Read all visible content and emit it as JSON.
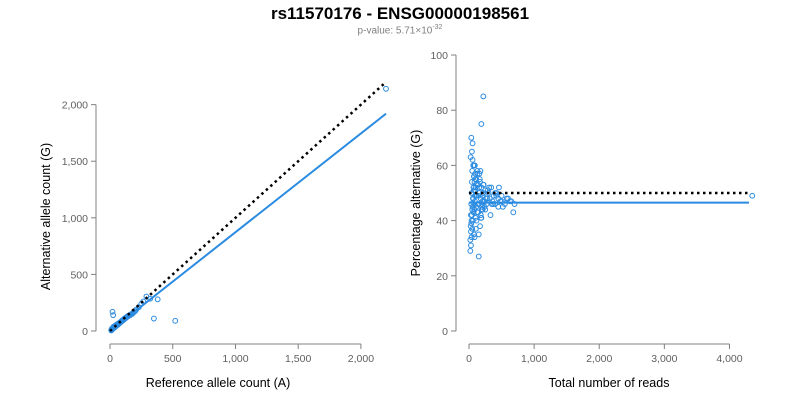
{
  "header": {
    "title": "rs11570176 - ENSG00000198561",
    "pvalue_prefix": "p-value: 5.71×10",
    "pvalue_exponent": "-32"
  },
  "colors": {
    "points": "#2b8be0",
    "fit_line": "#2b8be0",
    "expected_line": "#000000",
    "axis": "#808080"
  },
  "chart_data": [
    {
      "type": "scatter",
      "title": "",
      "xlabel": "Reference allele count (A)",
      "ylabel": "Alternative allele count (G)",
      "xlim": [
        0,
        2200
      ],
      "ylim": [
        0,
        2200
      ],
      "xticks": [
        0,
        500,
        1000,
        1500,
        2000
      ],
      "xtick_labels": [
        "0",
        "500",
        "1,000",
        "1,500",
        "2,000"
      ],
      "yticks": [
        0,
        500,
        1000,
        1500,
        2000
      ],
      "ytick_labels": [
        "0",
        "500",
        "1,000",
        "1,500",
        "2,000"
      ],
      "fit_line": {
        "x": [
          0,
          2200
        ],
        "y": [
          0,
          1920
        ]
      },
      "expected_line": {
        "x": [
          0,
          2200
        ],
        "y": [
          0,
          2200
        ]
      },
      "points": {
        "x": [
          10,
          15,
          20,
          25,
          30,
          12,
          18,
          22,
          28,
          35,
          40,
          45,
          50,
          55,
          60,
          65,
          70,
          80,
          90,
          100,
          110,
          120,
          130,
          140,
          150,
          160,
          175,
          190,
          210,
          230,
          250,
          265,
          290,
          320,
          350,
          380,
          520,
          2200,
          20,
          25,
          30,
          38,
          42,
          48,
          52,
          58,
          62,
          68,
          72,
          78,
          85,
          95,
          105,
          115,
          128,
          135,
          145,
          155,
          170,
          185,
          200,
          12,
          16,
          26,
          32,
          44,
          56,
          66,
          76,
          88,
          98,
          22,
          36,
          46,
          64,
          82
        ],
        "y": [
          5,
          10,
          18,
          25,
          30,
          8,
          15,
          20,
          28,
          30,
          38,
          42,
          45,
          52,
          58,
          60,
          65,
          72,
          85,
          92,
          100,
          110,
          118,
          130,
          135,
          140,
          150,
          170,
          190,
          210,
          240,
          260,
          305,
          285,
          110,
          280,
          90,
          2140,
          170,
          140,
          40,
          35,
          45,
          50,
          55,
          60,
          55,
          65,
          70,
          75,
          80,
          90,
          95,
          110,
          120,
          125,
          130,
          140,
          150,
          160,
          175,
          15,
          22,
          30,
          35,
          40,
          50,
          60,
          70,
          80,
          95,
          25,
          40,
          50,
          60,
          75
        ]
      }
    },
    {
      "type": "scatter",
      "title": "",
      "xlabel": "Total number of reads",
      "ylabel": "Percentage alternative (G)",
      "xlim": [
        0,
        4300
      ],
      "ylim": [
        0,
        100
      ],
      "xticks": [
        0,
        1000,
        2000,
        3000,
        4000
      ],
      "xtick_labels": [
        "0",
        "1,000",
        "2,000",
        "3,000",
        "4,000"
      ],
      "yticks": [
        0,
        20,
        40,
        60,
        80,
        100
      ],
      "ytick_labels": [
        "0",
        "20",
        "40",
        "60",
        "80",
        "100"
      ],
      "fit_line": {
        "x": [
          0,
          4300
        ],
        "y": [
          46.5,
          46.5
        ]
      },
      "expected_line": {
        "x": [
          0,
          4300
        ],
        "y": [
          50,
          50
        ]
      },
      "points": {
        "x": [
          20,
          25,
          30,
          35,
          40,
          45,
          50,
          55,
          60,
          65,
          70,
          75,
          80,
          85,
          90,
          95,
          100,
          110,
          120,
          130,
          140,
          150,
          160,
          170,
          180,
          190,
          200,
          210,
          220,
          230,
          250,
          270,
          300,
          320,
          340,
          360,
          380,
          400,
          420,
          450,
          480,
          500,
          550,
          600,
          650,
          700,
          4350,
          30,
          40,
          50,
          60,
          70,
          80,
          90,
          100,
          110,
          120,
          140,
          160,
          180,
          200,
          220,
          250,
          280,
          310,
          350,
          400,
          450,
          500,
          20,
          30,
          40,
          50,
          60,
          70,
          80,
          90,
          100,
          110,
          130,
          150,
          170,
          190,
          210,
          240,
          35,
          45,
          55,
          65,
          75,
          85,
          95,
          105,
          115,
          125,
          135,
          145,
          155,
          165,
          175,
          185,
          195,
          205,
          215,
          225,
          240,
          260,
          290,
          330,
          370,
          420,
          460,
          520,
          580,
          630,
          680,
          190,
          220,
          150,
          45,
          35,
          55,
          75,
          25,
          65,
          85
        ],
        "y": [
          33,
          38,
          42,
          46,
          50,
          54,
          58,
          62,
          45,
          48,
          52,
          56,
          60,
          44,
          47,
          51,
          55,
          49,
          53,
          57,
          43,
          46,
          50,
          54,
          48,
          52,
          45,
          49,
          53,
          47,
          51,
          46,
          50,
          48,
          52,
          47,
          49,
          46,
          50,
          48,
          47,
          49,
          46,
          48,
          47,
          46,
          49,
          36,
          40,
          44,
          48,
          52,
          56,
          60,
          41,
          45,
          49,
          53,
          57,
          42,
          46,
          50,
          44,
          48,
          52,
          46,
          50,
          45,
          47,
          29,
          31,
          34,
          37,
          40,
          43,
          46,
          49,
          52,
          55,
          58,
          35,
          38,
          41,
          44,
          47,
          39,
          42,
          45,
          48,
          51,
          54,
          57,
          37,
          40,
          43,
          46,
          49,
          52,
          55,
          58,
          41,
          44,
          47,
          50,
          53,
          45,
          48,
          51,
          42,
          46,
          49,
          52,
          45,
          48,
          47,
          43,
          75,
          85,
          27,
          65,
          70,
          68,
          35,
          63,
          60,
          34
        ]
      }
    }
  ]
}
